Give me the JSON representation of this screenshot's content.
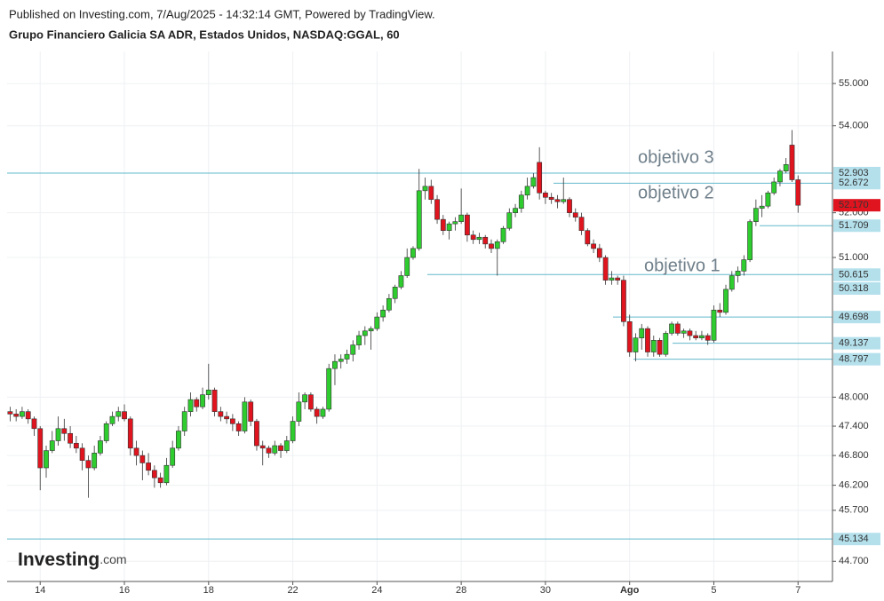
{
  "chart_data": {
    "type": "candlestick",
    "published": "Published on Investing.com, 7/Aug/2025 - 14:32:14 GMT, Powered by TradingView.",
    "title": "Grupo Financiero Galicia SA ADR, Estados Unidos, NASDAQ:GGAL, 60",
    "logo": [
      "Investing",
      ".com"
    ],
    "log_scale": true,
    "grid": true,
    "up_color": "#2ecc2e",
    "down_color": "#e0141e",
    "level_color": "#62b8cc",
    "ylim": [
      44.31,
      55.77
    ],
    "yticks": [
      {
        "value": 55,
        "label": "55.000"
      },
      {
        "value": 54,
        "label": "54.000"
      },
      {
        "value": 52,
        "label": "52.000"
      },
      {
        "value": 51,
        "label": "51.000"
      },
      {
        "value": 48,
        "label": "48.000"
      },
      {
        "value": 47.4,
        "label": "47.400"
      },
      {
        "value": 46.8,
        "label": "46.800"
      },
      {
        "value": 46.2,
        "label": "46.200"
      },
      {
        "value": 45.7,
        "label": "45.700"
      },
      {
        "value": 44.7,
        "label": "44.700"
      }
    ],
    "categories": [
      null,
      null,
      null,
      null,
      null,
      "14",
      null,
      null,
      null,
      null,
      null,
      null,
      null,
      null,
      null,
      null,
      null,
      null,
      null,
      "16",
      null,
      null,
      null,
      null,
      null,
      null,
      null,
      null,
      null,
      null,
      null,
      null,
      null,
      "18",
      null,
      null,
      null,
      null,
      null,
      null,
      null,
      null,
      null,
      null,
      null,
      null,
      null,
      "22",
      null,
      null,
      null,
      null,
      null,
      null,
      null,
      null,
      null,
      null,
      null,
      null,
      null,
      "24",
      null,
      null,
      null,
      null,
      null,
      null,
      null,
      null,
      null,
      null,
      null,
      null,
      null,
      "28",
      null,
      null,
      null,
      null,
      null,
      null,
      null,
      null,
      null,
      null,
      null,
      null,
      null,
      "30",
      null,
      null,
      null,
      null,
      null,
      null,
      null,
      null,
      null,
      null,
      null,
      null,
      null,
      "Ago",
      null,
      null,
      null,
      null,
      null,
      null,
      null,
      null,
      null,
      null,
      null,
      null,
      null,
      "5",
      null,
      null,
      null,
      null,
      null,
      null,
      null,
      null,
      null,
      null,
      null,
      null,
      null,
      "7"
    ],
    "candles": [
      [
        47.7,
        47.8,
        47.5,
        47.65
      ],
      [
        47.65,
        47.75,
        47.5,
        47.6
      ],
      [
        47.6,
        47.8,
        47.55,
        47.7
      ],
      [
        47.7,
        47.75,
        47.45,
        47.55
      ],
      [
        47.55,
        47.6,
        47.2,
        47.35
      ],
      [
        47.35,
        47.4,
        46.1,
        46.55
      ],
      [
        46.55,
        47.0,
        46.35,
        46.9
      ],
      [
        46.9,
        47.3,
        46.85,
        47.1
      ],
      [
        47.1,
        47.6,
        47.0,
        47.35
      ],
      [
        47.35,
        47.55,
        47.1,
        47.25
      ],
      [
        47.25,
        47.4,
        46.95,
        47.05
      ],
      [
        47.05,
        47.2,
        46.85,
        46.95
      ],
      [
        46.95,
        47.05,
        46.5,
        46.7
      ],
      [
        46.7,
        46.8,
        45.95,
        46.55
      ],
      [
        46.55,
        47.0,
        46.5,
        46.85
      ],
      [
        46.85,
        47.2,
        46.8,
        47.1
      ],
      [
        47.1,
        47.5,
        47.05,
        47.45
      ],
      [
        47.45,
        47.7,
        47.4,
        47.6
      ],
      [
        47.6,
        47.8,
        47.5,
        47.7
      ],
      [
        47.7,
        47.85,
        47.5,
        47.55
      ],
      [
        47.55,
        47.6,
        46.8,
        46.95
      ],
      [
        46.95,
        47.1,
        46.6,
        46.8
      ],
      [
        46.8,
        46.9,
        46.3,
        46.65
      ],
      [
        46.65,
        46.85,
        46.4,
        46.5
      ],
      [
        46.5,
        46.6,
        46.15,
        46.35
      ],
      [
        46.35,
        46.45,
        46.15,
        46.25
      ],
      [
        46.25,
        46.75,
        46.2,
        46.6
      ],
      [
        46.6,
        47.1,
        46.55,
        46.95
      ],
      [
        46.95,
        47.4,
        46.9,
        47.3
      ],
      [
        47.3,
        47.8,
        47.2,
        47.7
      ],
      [
        47.7,
        48.1,
        47.6,
        47.95
      ],
      [
        47.95,
        48.0,
        47.7,
        47.8
      ],
      [
        47.8,
        48.2,
        47.75,
        48.05
      ],
      [
        48.05,
        48.7,
        47.95,
        48.15
      ],
      [
        48.15,
        48.2,
        47.6,
        47.7
      ],
      [
        47.7,
        47.8,
        47.5,
        47.6
      ],
      [
        47.6,
        47.7,
        47.45,
        47.55
      ],
      [
        47.55,
        47.65,
        47.3,
        47.45
      ],
      [
        47.45,
        47.5,
        47.2,
        47.3
      ],
      [
        47.3,
        48.0,
        47.25,
        47.9
      ],
      [
        47.9,
        47.95,
        47.4,
        47.5
      ],
      [
        47.5,
        47.55,
        46.9,
        47.0
      ],
      [
        47.0,
        47.1,
        46.6,
        46.95
      ],
      [
        46.95,
        47.0,
        46.75,
        46.85
      ],
      [
        46.85,
        47.1,
        46.8,
        47.0
      ],
      [
        47.0,
        47.05,
        46.75,
        46.9
      ],
      [
        46.9,
        47.2,
        46.85,
        47.1
      ],
      [
        47.1,
        47.6,
        47.05,
        47.5
      ],
      [
        47.5,
        48.1,
        47.4,
        47.9
      ],
      [
        47.9,
        48.1,
        47.75,
        48.05
      ],
      [
        48.05,
        48.1,
        47.7,
        47.75
      ],
      [
        47.75,
        47.8,
        47.45,
        47.6
      ],
      [
        47.6,
        47.8,
        47.55,
        47.75
      ],
      [
        47.75,
        48.7,
        47.7,
        48.6
      ],
      [
        48.6,
        48.9,
        48.25,
        48.75
      ],
      [
        48.75,
        48.9,
        48.6,
        48.8
      ],
      [
        48.8,
        49.0,
        48.7,
        48.9
      ],
      [
        48.9,
        49.2,
        48.75,
        49.1
      ],
      [
        49.1,
        49.4,
        49.0,
        49.3
      ],
      [
        49.3,
        49.5,
        49.1,
        49.4
      ],
      [
        49.4,
        49.5,
        49.0,
        49.45
      ],
      [
        49.45,
        49.8,
        49.4,
        49.7
      ],
      [
        49.7,
        49.95,
        49.6,
        49.85
      ],
      [
        49.85,
        50.2,
        49.8,
        50.1
      ],
      [
        50.1,
        50.4,
        50.0,
        50.35
      ],
      [
        50.35,
        50.7,
        50.3,
        50.6
      ],
      [
        50.6,
        51.2,
        50.55,
        51.0
      ],
      [
        51.0,
        51.25,
        50.95,
        51.2
      ],
      [
        51.2,
        53.0,
        51.15,
        52.5
      ],
      [
        52.5,
        52.8,
        52.3,
        52.6
      ],
      [
        52.6,
        52.75,
        52.2,
        52.3
      ],
      [
        52.3,
        52.4,
        51.75,
        51.85
      ],
      [
        51.85,
        51.95,
        51.5,
        51.6
      ],
      [
        51.6,
        51.8,
        51.4,
        51.75
      ],
      [
        51.75,
        51.9,
        51.6,
        51.8
      ],
      [
        51.8,
        52.55,
        51.75,
        51.95
      ],
      [
        51.95,
        52.0,
        51.35,
        51.5
      ],
      [
        51.5,
        51.6,
        51.3,
        51.4
      ],
      [
        51.4,
        51.55,
        51.3,
        51.45
      ],
      [
        51.45,
        51.5,
        51.2,
        51.3
      ],
      [
        51.3,
        51.4,
        51.1,
        51.2
      ],
      [
        51.2,
        51.4,
        50.6,
        51.35
      ],
      [
        51.35,
        51.7,
        51.3,
        51.65
      ],
      [
        51.65,
        52.1,
        51.6,
        52.0
      ],
      [
        52.0,
        52.2,
        51.9,
        52.1
      ],
      [
        52.1,
        52.5,
        52.0,
        52.4
      ],
      [
        52.4,
        52.8,
        52.3,
        52.6
      ],
      [
        52.6,
        52.9,
        52.55,
        52.8
      ],
      [
        53.15,
        53.5,
        52.3,
        52.45
      ],
      [
        52.45,
        52.5,
        52.2,
        52.35
      ],
      [
        52.35,
        52.45,
        52.2,
        52.3
      ],
      [
        52.3,
        52.4,
        52.1,
        52.25
      ],
      [
        52.25,
        52.8,
        52.2,
        52.3
      ],
      [
        52.3,
        52.35,
        51.9,
        52.0
      ],
      [
        52.0,
        52.1,
        51.8,
        51.9
      ],
      [
        51.9,
        52.0,
        51.5,
        51.6
      ],
      [
        51.6,
        51.65,
        51.25,
        51.3
      ],
      [
        51.3,
        51.4,
        51.1,
        51.2
      ],
      [
        51.2,
        51.3,
        50.9,
        51.0
      ],
      [
        51.0,
        51.05,
        50.4,
        50.5
      ],
      [
        50.5,
        50.7,
        50.4,
        50.55
      ],
      [
        50.55,
        50.6,
        50.4,
        50.5
      ],
      [
        50.5,
        50.6,
        49.5,
        49.6
      ],
      [
        49.6,
        49.75,
        48.85,
        48.95
      ],
      [
        48.95,
        49.35,
        48.75,
        49.25
      ],
      [
        49.25,
        49.55,
        49.0,
        49.45
      ],
      [
        49.45,
        49.5,
        48.85,
        48.95
      ],
      [
        48.95,
        49.3,
        48.85,
        49.2
      ],
      [
        49.2,
        49.25,
        48.85,
        48.9
      ],
      [
        48.9,
        49.4,
        48.85,
        49.35
      ],
      [
        49.35,
        49.6,
        49.3,
        49.55
      ],
      [
        49.55,
        49.6,
        49.3,
        49.35
      ],
      [
        49.35,
        49.45,
        49.25,
        49.4
      ],
      [
        49.4,
        49.45,
        49.2,
        49.3
      ],
      [
        49.3,
        49.4,
        49.2,
        49.25
      ],
      [
        49.25,
        49.4,
        49.2,
        49.3
      ],
      [
        49.3,
        49.35,
        49.1,
        49.2
      ],
      [
        49.2,
        49.95,
        49.15,
        49.85
      ],
      [
        49.85,
        50.0,
        49.7,
        49.8
      ],
      [
        49.8,
        50.4,
        49.75,
        50.3
      ],
      [
        50.3,
        50.7,
        50.25,
        50.6
      ],
      [
        50.6,
        50.8,
        50.45,
        50.7
      ],
      [
        50.7,
        51.05,
        50.6,
        50.95
      ],
      [
        50.95,
        51.85,
        50.9,
        51.8
      ],
      [
        51.8,
        52.3,
        51.7,
        52.1
      ],
      [
        52.1,
        52.4,
        51.9,
        52.15
      ],
      [
        52.15,
        52.5,
        52.1,
        52.45
      ],
      [
        52.45,
        52.8,
        52.4,
        52.7
      ],
      [
        52.7,
        53.0,
        52.6,
        52.95
      ],
      [
        52.95,
        53.25,
        52.9,
        53.1
      ],
      [
        53.55,
        53.9,
        52.7,
        52.75
      ],
      [
        52.75,
        52.85,
        52.0,
        52.17
      ]
    ],
    "levels": [
      52.903,
      52.672,
      51.709,
      50.623,
      50.615,
      50.318,
      49.698,
      49.137,
      48.797,
      45.134
    ],
    "last_price": {
      "value": 52.17,
      "label": "52.170"
    },
    "annotations": [
      "objetivo 3",
      "objetivo 2",
      "objetivo 1"
    ]
  }
}
